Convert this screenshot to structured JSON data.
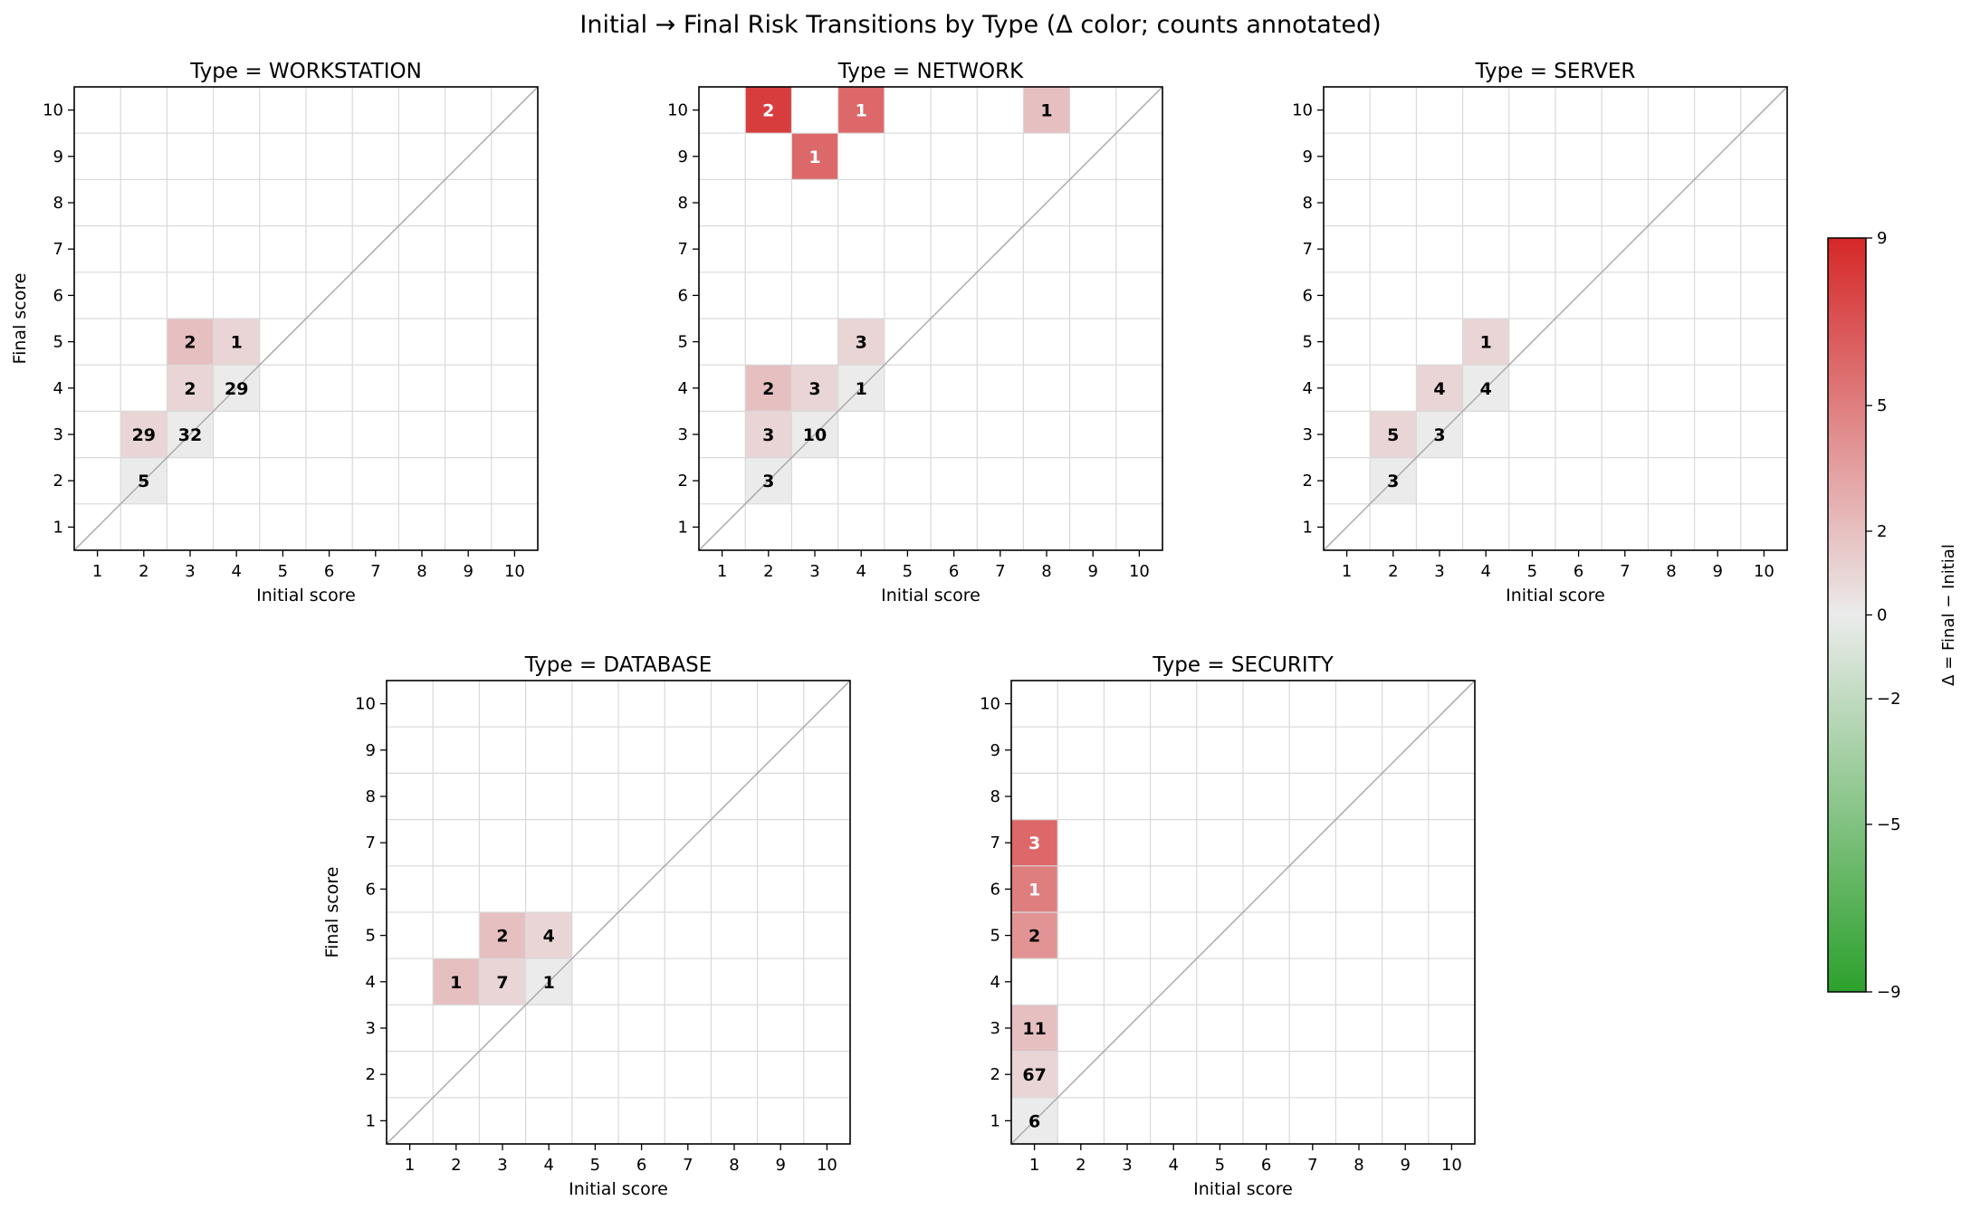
{
  "chart_data": {
    "type": "heatmap",
    "title": "Initial → Final Risk Transitions by Type (Δ color; counts annotated)",
    "xlabel": "Initial score",
    "ylabel": "Final score",
    "x_ticks": [
      1,
      2,
      3,
      4,
      5,
      6,
      7,
      8,
      9,
      10
    ],
    "y_ticks": [
      1,
      2,
      3,
      4,
      5,
      6,
      7,
      8,
      9,
      10
    ],
    "color_encoding": "Δ = Final − Initial",
    "colorbar": {
      "label": "Δ = Final − Initial",
      "range": [
        -9,
        9
      ],
      "ticks": [
        {
          "value": 9,
          "label": "9"
        },
        {
          "value": 5,
          "label": "5"
        },
        {
          "value": 2,
          "label": "2"
        },
        {
          "value": 0,
          "label": "0"
        },
        {
          "value": -2,
          "label": "−2"
        },
        {
          "value": -5,
          "label": "−5"
        },
        {
          "value": -9,
          "label": "−9"
        }
      ],
      "colors": {
        "negative": "#2ca02c",
        "neutral": "#ebebeb",
        "positive": "#d62728"
      }
    },
    "panels": [
      {
        "title": "Type = WORKSTATION",
        "cells": [
          {
            "initial": 2,
            "final": 2,
            "count": 5
          },
          {
            "initial": 2,
            "final": 3,
            "count": 29
          },
          {
            "initial": 3,
            "final": 3,
            "count": 32
          },
          {
            "initial": 3,
            "final": 4,
            "count": 2
          },
          {
            "initial": 4,
            "final": 4,
            "count": 29
          },
          {
            "initial": 3,
            "final": 5,
            "count": 2
          },
          {
            "initial": 4,
            "final": 5,
            "count": 1
          }
        ]
      },
      {
        "title": "Type = NETWORK",
        "cells": [
          {
            "initial": 2,
            "final": 2,
            "count": 3
          },
          {
            "initial": 2,
            "final": 3,
            "count": 3
          },
          {
            "initial": 3,
            "final": 3,
            "count": 10
          },
          {
            "initial": 2,
            "final": 4,
            "count": 2
          },
          {
            "initial": 3,
            "final": 4,
            "count": 3
          },
          {
            "initial": 4,
            "final": 4,
            "count": 1
          },
          {
            "initial": 4,
            "final": 5,
            "count": 3
          },
          {
            "initial": 3,
            "final": 9,
            "count": 1
          },
          {
            "initial": 2,
            "final": 10,
            "count": 2
          },
          {
            "initial": 4,
            "final": 10,
            "count": 1
          },
          {
            "initial": 8,
            "final": 10,
            "count": 1
          }
        ]
      },
      {
        "title": "Type = SERVER",
        "cells": [
          {
            "initial": 2,
            "final": 2,
            "count": 3
          },
          {
            "initial": 2,
            "final": 3,
            "count": 5
          },
          {
            "initial": 3,
            "final": 3,
            "count": 3
          },
          {
            "initial": 3,
            "final": 4,
            "count": 4
          },
          {
            "initial": 4,
            "final": 4,
            "count": 4
          },
          {
            "initial": 4,
            "final": 5,
            "count": 1
          }
        ]
      },
      {
        "title": "Type = DATABASE",
        "cells": [
          {
            "initial": 2,
            "final": 4,
            "count": 1
          },
          {
            "initial": 3,
            "final": 4,
            "count": 7
          },
          {
            "initial": 4,
            "final": 4,
            "count": 1
          },
          {
            "initial": 3,
            "final": 5,
            "count": 2
          },
          {
            "initial": 4,
            "final": 5,
            "count": 4
          }
        ]
      },
      {
        "title": "Type = SECURITY",
        "cells": [
          {
            "initial": 1,
            "final": 1,
            "count": 6
          },
          {
            "initial": 1,
            "final": 2,
            "count": 67
          },
          {
            "initial": 1,
            "final": 3,
            "count": 11
          },
          {
            "initial": 1,
            "final": 5,
            "count": 2
          },
          {
            "initial": 1,
            "final": 6,
            "count": 1
          },
          {
            "initial": 1,
            "final": 7,
            "count": 3
          }
        ]
      }
    ]
  }
}
